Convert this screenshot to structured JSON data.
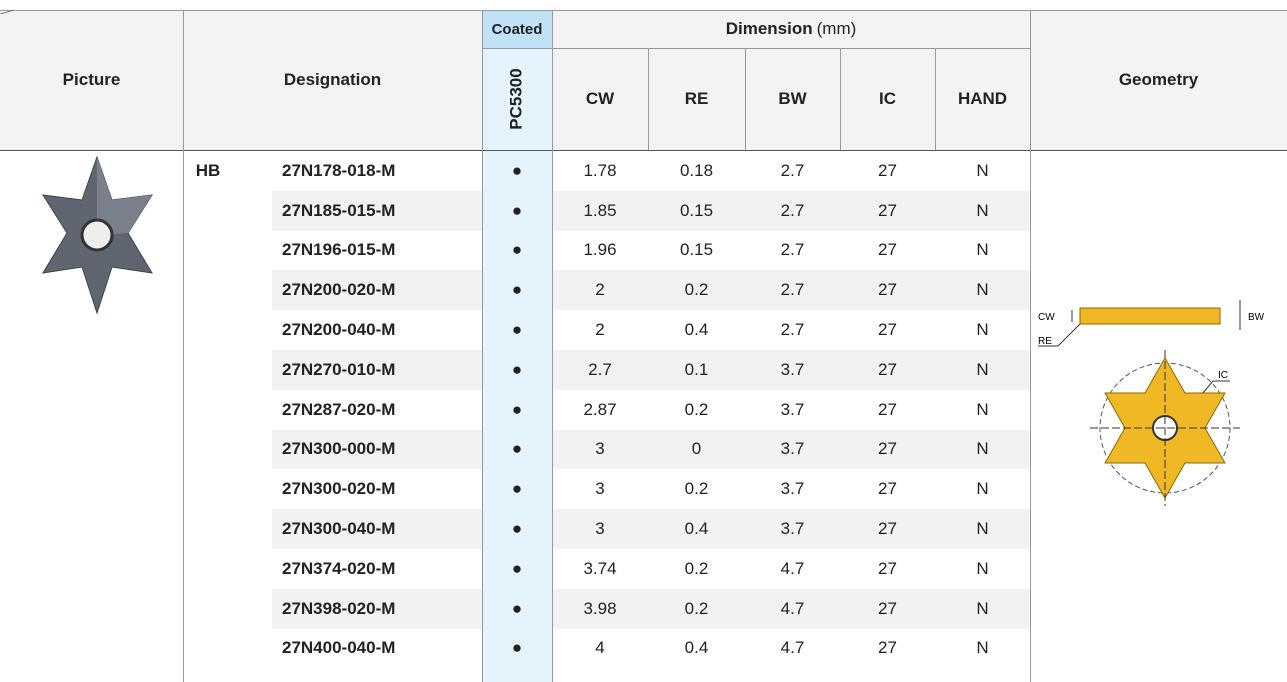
{
  "header": {
    "picture": "Picture",
    "designation": "Designation",
    "coated": "Coated",
    "grade": "PC5300",
    "dimension": "Dimension",
    "unit": "(mm)",
    "columns": [
      "CW",
      "RE",
      "BW",
      "IC",
      "HAND"
    ],
    "geometry": "Geometry"
  },
  "table": {
    "group": "HB",
    "rows": [
      [
        "27N178-018-M",
        "●",
        "1.78",
        "0.18",
        "2.7",
        "27",
        "N"
      ],
      [
        "27N185-015-M",
        "●",
        "1.85",
        "0.15",
        "2.7",
        "27",
        "N"
      ],
      [
        "27N196-015-M",
        "●",
        "1.96",
        "0.15",
        "2.7",
        "27",
        "N"
      ],
      [
        "27N200-020-M",
        "●",
        "2",
        "0.2",
        "2.7",
        "27",
        "N"
      ],
      [
        "27N200-040-M",
        "●",
        "2",
        "0.4",
        "2.7",
        "27",
        "N"
      ],
      [
        "27N270-010-M",
        "●",
        "2.7",
        "0.1",
        "3.7",
        "27",
        "N"
      ],
      [
        "27N287-020-M",
        "●",
        "2.87",
        "0.2",
        "3.7",
        "27",
        "N"
      ],
      [
        "27N300-000-M",
        "●",
        "3",
        "0",
        "3.7",
        "27",
        "N"
      ],
      [
        "27N300-020-M",
        "●",
        "3",
        "0.2",
        "3.7",
        "27",
        "N"
      ],
      [
        "27N300-040-M",
        "●",
        "3",
        "0.4",
        "3.7",
        "27",
        "N"
      ],
      [
        "27N374-020-M",
        "●",
        "3.74",
        "0.2",
        "4.7",
        "27",
        "N"
      ],
      [
        "27N398-020-M",
        "●",
        "3.98",
        "0.2",
        "4.7",
        "27",
        "N"
      ],
      [
        "27N400-040-M",
        "●",
        "4",
        "0.4",
        "4.7",
        "27",
        "N"
      ]
    ]
  },
  "geometry_labels": {
    "cw": "CW",
    "bw": "BW",
    "re": "RE",
    "ic": "IC"
  }
}
